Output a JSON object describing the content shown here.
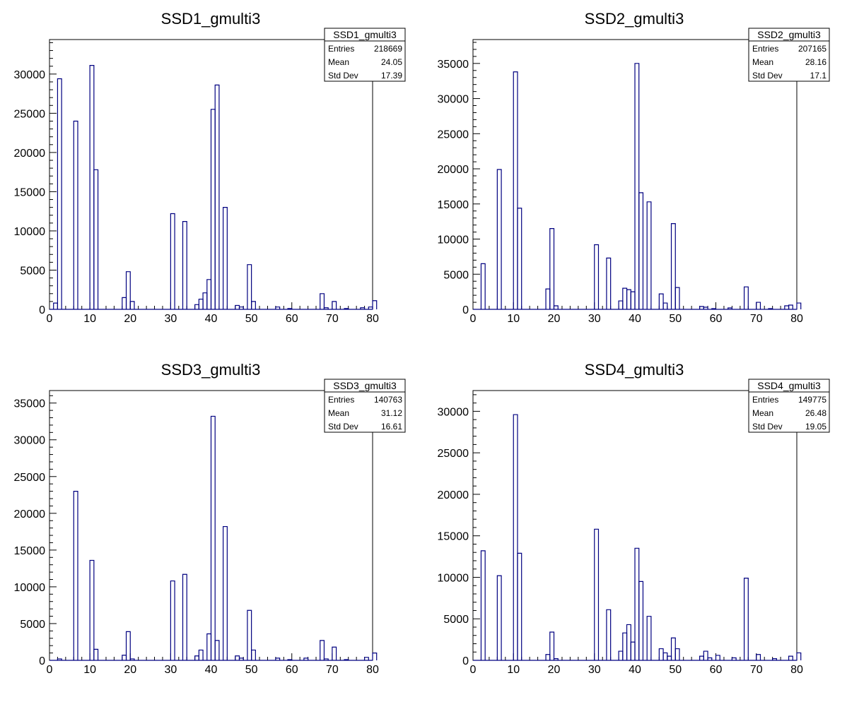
{
  "colors": {
    "hist_line": "#000080",
    "frame": "#000000",
    "background": "#ffffff"
  },
  "stats_labels": {
    "entries": "Entries",
    "mean": "Mean",
    "stddev": "Std Dev"
  },
  "chart_data": [
    {
      "type": "bar",
      "histogram_style": "step",
      "title": "SSD1_gmulti3",
      "xlabel": "",
      "ylabel": "",
      "xlim": [
        0,
        80
      ],
      "ylim": [
        0,
        34400
      ],
      "xticks": [
        "0",
        "10",
        "20",
        "30",
        "40",
        "50",
        "60",
        "70",
        "80"
      ],
      "yticks": [
        "0",
        "5000",
        "10000",
        "15000",
        "20000",
        "25000",
        "30000"
      ],
      "stats": {
        "name": "SSD1_gmulti3",
        "entries": "218669",
        "mean": "24.05",
        "stddev": "17.39"
      },
      "bin_width": 1,
      "bins": [
        [
          1,
          800
        ],
        [
          2,
          29400
        ],
        [
          6,
          24000
        ],
        [
          10,
          31100
        ],
        [
          11,
          17800
        ],
        [
          18,
          1500
        ],
        [
          19,
          4800
        ],
        [
          20,
          1000
        ],
        [
          30,
          12200
        ],
        [
          33,
          11200
        ],
        [
          36,
          600
        ],
        [
          37,
          1300
        ],
        [
          38,
          2100
        ],
        [
          39,
          3800
        ],
        [
          40,
          25500
        ],
        [
          41,
          28600
        ],
        [
          43,
          13000
        ],
        [
          46,
          500
        ],
        [
          47,
          300
        ],
        [
          49,
          5700
        ],
        [
          50,
          1000
        ],
        [
          56,
          300
        ],
        [
          59,
          100
        ],
        [
          67,
          2000
        ],
        [
          68,
          200
        ],
        [
          70,
          1000
        ],
        [
          73,
          100
        ],
        [
          77,
          200
        ],
        [
          79,
          300
        ],
        [
          80,
          1100
        ]
      ]
    },
    {
      "type": "bar",
      "histogram_style": "step",
      "title": "SSD2_gmulti3",
      "xlabel": "",
      "ylabel": "",
      "xlim": [
        0,
        80
      ],
      "ylim": [
        0,
        38400
      ],
      "xticks": [
        "0",
        "10",
        "20",
        "30",
        "40",
        "50",
        "60",
        "70",
        "80"
      ],
      "yticks": [
        "0",
        "5000",
        "10000",
        "15000",
        "20000",
        "25000",
        "30000",
        "35000"
      ],
      "stats": {
        "name": "SSD2_gmulti3",
        "entries": "207165",
        "mean": "28.16",
        "stddev": "17.1"
      },
      "bin_width": 1,
      "bins": [
        [
          2,
          6500
        ],
        [
          6,
          19900
        ],
        [
          10,
          33800
        ],
        [
          11,
          14400
        ],
        [
          18,
          2900
        ],
        [
          19,
          11500
        ],
        [
          20,
          500
        ],
        [
          30,
          9200
        ],
        [
          33,
          7300
        ],
        [
          36,
          1200
        ],
        [
          37,
          3000
        ],
        [
          38,
          2800
        ],
        [
          39,
          2500
        ],
        [
          40,
          35000
        ],
        [
          41,
          16600
        ],
        [
          43,
          15300
        ],
        [
          46,
          2200
        ],
        [
          47,
          900
        ],
        [
          49,
          12200
        ],
        [
          50,
          3100
        ],
        [
          56,
          400
        ],
        [
          57,
          300
        ],
        [
          59,
          100
        ],
        [
          63,
          200
        ],
        [
          67,
          3200
        ],
        [
          70,
          1000
        ],
        [
          73,
          100
        ],
        [
          77,
          500
        ],
        [
          78,
          600
        ],
        [
          80,
          900
        ]
      ]
    },
    {
      "type": "bar",
      "histogram_style": "step",
      "title": "SSD3_gmulti3",
      "xlabel": "",
      "ylabel": "",
      "xlim": [
        0,
        80
      ],
      "ylim": [
        0,
        36700
      ],
      "xticks": [
        "0",
        "10",
        "20",
        "30",
        "40",
        "50",
        "60",
        "70",
        "80"
      ],
      "yticks": [
        "0",
        "5000",
        "10000",
        "15000",
        "20000",
        "25000",
        "30000",
        "35000"
      ],
      "stats": {
        "name": "SSD3_gmulti3",
        "entries": "140763",
        "mean": "31.12",
        "stddev": "16.61"
      },
      "bin_width": 1,
      "bins": [
        [
          2,
          200
        ],
        [
          6,
          23000
        ],
        [
          10,
          13600
        ],
        [
          11,
          1500
        ],
        [
          18,
          700
        ],
        [
          19,
          3900
        ],
        [
          20,
          200
        ],
        [
          30,
          10800
        ],
        [
          33,
          11700
        ],
        [
          36,
          600
        ],
        [
          37,
          1400
        ],
        [
          39,
          3600
        ],
        [
          40,
          33200
        ],
        [
          41,
          2700
        ],
        [
          43,
          18200
        ],
        [
          46,
          600
        ],
        [
          47,
          300
        ],
        [
          49,
          6800
        ],
        [
          50,
          1400
        ],
        [
          56,
          300
        ],
        [
          59,
          100
        ],
        [
          63,
          300
        ],
        [
          67,
          2700
        ],
        [
          68,
          200
        ],
        [
          70,
          1800
        ],
        [
          73,
          100
        ],
        [
          78,
          400
        ],
        [
          80,
          1000
        ]
      ]
    },
    {
      "type": "bar",
      "histogram_style": "step",
      "title": "SSD4_gmulti3",
      "xlabel": "",
      "ylabel": "",
      "xlim": [
        0,
        80
      ],
      "ylim": [
        0,
        32500
      ],
      "xticks": [
        "0",
        "10",
        "20",
        "30",
        "40",
        "50",
        "60",
        "70",
        "80"
      ],
      "yticks": [
        "0",
        "5000",
        "10000",
        "15000",
        "20000",
        "25000",
        "30000"
      ],
      "stats": {
        "name": "SSD4_gmulti3",
        "entries": "149775",
        "mean": "26.48",
        "stddev": "19.05"
      },
      "bin_width": 1,
      "bins": [
        [
          2,
          13200
        ],
        [
          6,
          10200
        ],
        [
          10,
          29600
        ],
        [
          11,
          12900
        ],
        [
          18,
          700
        ],
        [
          19,
          3400
        ],
        [
          20,
          200
        ],
        [
          30,
          15800
        ],
        [
          33,
          6100
        ],
        [
          36,
          1100
        ],
        [
          37,
          3300
        ],
        [
          38,
          4300
        ],
        [
          39,
          2200
        ],
        [
          40,
          13500
        ],
        [
          41,
          9500
        ],
        [
          43,
          5300
        ],
        [
          46,
          1400
        ],
        [
          47,
          900
        ],
        [
          48,
          500
        ],
        [
          49,
          2700
        ],
        [
          50,
          1400
        ],
        [
          56,
          500
        ],
        [
          57,
          1100
        ],
        [
          58,
          300
        ],
        [
          60,
          600
        ],
        [
          64,
          300
        ],
        [
          67,
          9900
        ],
        [
          70,
          700
        ],
        [
          74,
          200
        ],
        [
          78,
          500
        ],
        [
          80,
          900
        ]
      ]
    }
  ]
}
